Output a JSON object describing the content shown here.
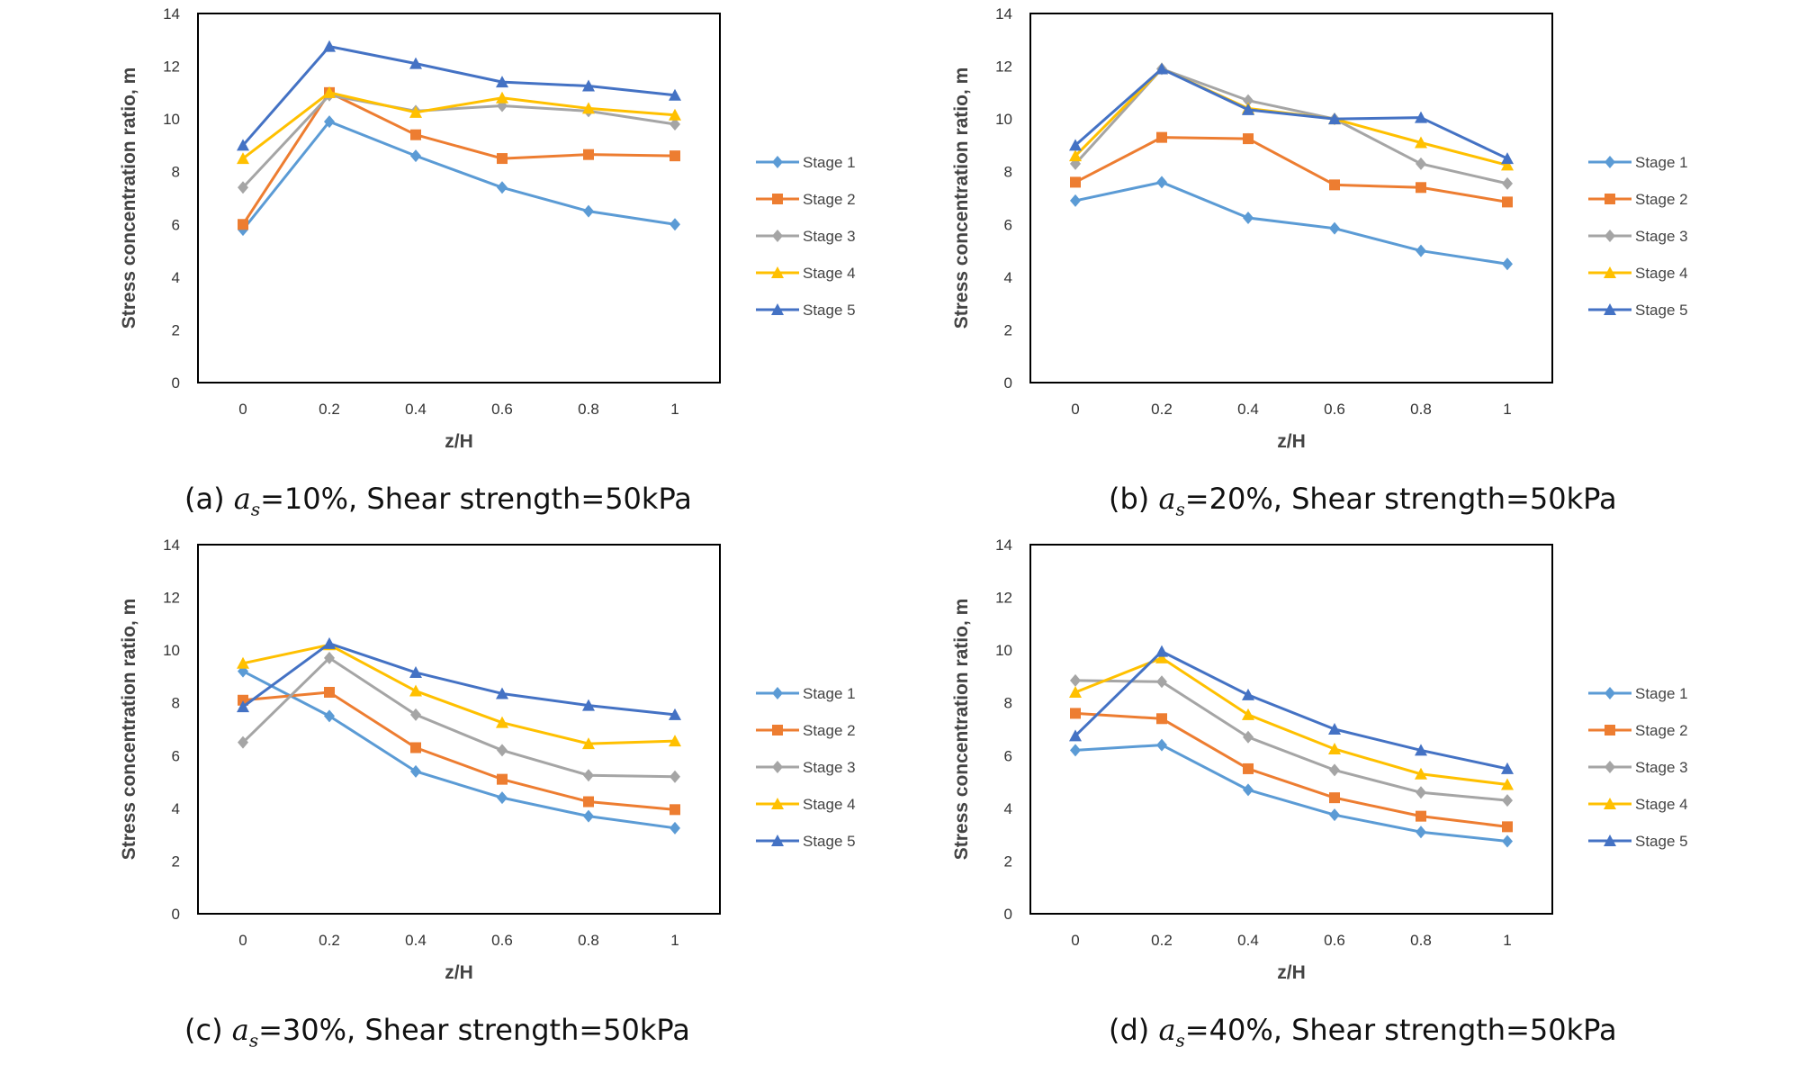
{
  "colors": {
    "Stage 1": "#5B9BD5",
    "Stage 2": "#ED7D31",
    "Stage 3": "#A5A5A5",
    "Stage 4": "#FFC000",
    "Stage 5": "#4472C4"
  },
  "chart_data": [
    {
      "type": "line",
      "caption": {
        "label": "(a)",
        "symbol": "a",
        "subscript": "s",
        "text": "=10%, Shear strength=50kPa"
      },
      "xlabel": "z/H",
      "ylabel": "Stress concentration ratio, m",
      "x": [
        0,
        0.2,
        0.4,
        0.6,
        0.8,
        1
      ],
      "x_tick_labels": [
        "0",
        "0.2",
        "0.4",
        "0.6",
        "0.8",
        "1"
      ],
      "ylim": [
        0,
        14
      ],
      "y_ticks": [
        0,
        2,
        4,
        6,
        8,
        10,
        12,
        14
      ],
      "legend_position": "right",
      "series": [
        {
          "name": "Stage 1",
          "marker": "diamond",
          "values": [
            5.8,
            9.9,
            8.6,
            7.4,
            6.5,
            6.0
          ]
        },
        {
          "name": "Stage 2",
          "marker": "square",
          "values": [
            6.0,
            11.0,
            9.4,
            8.5,
            8.65,
            8.6
          ]
        },
        {
          "name": "Stage 3",
          "marker": "diamond",
          "values": [
            7.4,
            10.9,
            10.3,
            10.5,
            10.3,
            9.8
          ]
        },
        {
          "name": "Stage 4",
          "marker": "triangle",
          "values": [
            8.5,
            11.0,
            10.25,
            10.8,
            10.4,
            10.15
          ]
        },
        {
          "name": "Stage 5",
          "marker": "triangle",
          "values": [
            9.0,
            12.75,
            12.1,
            11.4,
            11.25,
            10.9
          ]
        }
      ]
    },
    {
      "type": "line",
      "caption": {
        "label": "(b)",
        "symbol": "a",
        "subscript": "s",
        "text": "=20%, Shear strength=50kPa"
      },
      "xlabel": "z/H",
      "ylabel": "Stress concentration ratio, m",
      "x": [
        0,
        0.2,
        0.4,
        0.6,
        0.8,
        1
      ],
      "x_tick_labels": [
        "0",
        "0.2",
        "0.4",
        "0.6",
        "0.8",
        "1"
      ],
      "ylim": [
        0,
        14
      ],
      "y_ticks": [
        0,
        2,
        4,
        6,
        8,
        10,
        12,
        14
      ],
      "legend_position": "right",
      "series": [
        {
          "name": "Stage 1",
          "marker": "diamond",
          "values": [
            6.9,
            7.6,
            6.25,
            5.85,
            5.0,
            4.5
          ]
        },
        {
          "name": "Stage 2",
          "marker": "square",
          "values": [
            7.6,
            9.3,
            9.25,
            7.5,
            7.4,
            6.85
          ]
        },
        {
          "name": "Stage 3",
          "marker": "diamond",
          "values": [
            8.3,
            11.9,
            10.7,
            10.0,
            8.3,
            7.55
          ]
        },
        {
          "name": "Stage 4",
          "marker": "triangle",
          "values": [
            8.6,
            11.9,
            10.4,
            10.0,
            9.1,
            8.25
          ]
        },
        {
          "name": "Stage 5",
          "marker": "triangle",
          "values": [
            9.0,
            11.9,
            10.35,
            10.0,
            10.05,
            8.5
          ]
        }
      ]
    },
    {
      "type": "line",
      "caption": {
        "label": "(c)",
        "symbol": "a",
        "subscript": "s",
        "text": "=30%, Shear strength=50kPa"
      },
      "xlabel": "z/H",
      "ylabel": "Stress concentration ratio, m",
      "x": [
        0,
        0.2,
        0.4,
        0.6,
        0.8,
        1
      ],
      "x_tick_labels": [
        "0",
        "0.2",
        "0.4",
        "0.6",
        "0.8",
        "1"
      ],
      "ylim": [
        0,
        14
      ],
      "y_ticks": [
        0,
        2,
        4,
        6,
        8,
        10,
        12,
        14
      ],
      "legend_position": "right",
      "series": [
        {
          "name": "Stage 1",
          "marker": "diamond",
          "values": [
            9.2,
            7.5,
            5.4,
            4.4,
            3.7,
            3.25
          ]
        },
        {
          "name": "Stage 2",
          "marker": "square",
          "values": [
            8.1,
            8.4,
            6.3,
            5.1,
            4.25,
            3.95
          ]
        },
        {
          "name": "Stage 3",
          "marker": "diamond",
          "values": [
            6.5,
            9.7,
            7.55,
            6.2,
            5.25,
            5.2
          ]
        },
        {
          "name": "Stage 4",
          "marker": "triangle",
          "values": [
            9.5,
            10.2,
            8.45,
            7.25,
            6.45,
            6.55
          ]
        },
        {
          "name": "Stage 5",
          "marker": "triangle",
          "values": [
            7.85,
            10.25,
            9.15,
            8.35,
            7.9,
            7.55
          ]
        }
      ]
    },
    {
      "type": "line",
      "caption": {
        "label": "(d)",
        "symbol": "a",
        "subscript": "s",
        "text": "=40%, Shear strength=50kPa"
      },
      "xlabel": "z/H",
      "ylabel": "Stress concentration ratio, m",
      "x": [
        0,
        0.2,
        0.4,
        0.6,
        0.8,
        1
      ],
      "x_tick_labels": [
        "0",
        "0.2",
        "0.4",
        "0.6",
        "0.8",
        "1"
      ],
      "ylim": [
        0,
        14
      ],
      "y_ticks": [
        0,
        2,
        4,
        6,
        8,
        10,
        12,
        14
      ],
      "legend_position": "right",
      "series": [
        {
          "name": "Stage 1",
          "marker": "diamond",
          "values": [
            6.2,
            6.4,
            4.7,
            3.75,
            3.1,
            2.75
          ]
        },
        {
          "name": "Stage 2",
          "marker": "square",
          "values": [
            7.6,
            7.4,
            5.5,
            4.4,
            3.7,
            3.3
          ]
        },
        {
          "name": "Stage 3",
          "marker": "diamond",
          "values": [
            8.85,
            8.8,
            6.7,
            5.45,
            4.6,
            4.3
          ]
        },
        {
          "name": "Stage 4",
          "marker": "triangle",
          "values": [
            8.4,
            9.7,
            7.55,
            6.25,
            5.3,
            4.9
          ]
        },
        {
          "name": "Stage 5",
          "marker": "triangle",
          "values": [
            6.75,
            9.95,
            8.3,
            7.0,
            6.2,
            5.5
          ]
        }
      ]
    }
  ]
}
